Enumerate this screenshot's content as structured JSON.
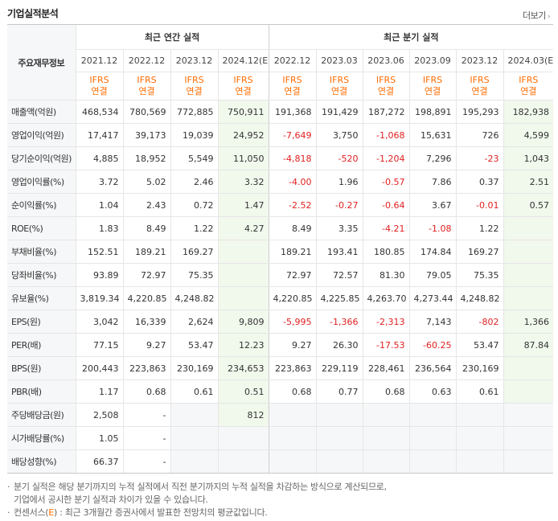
{
  "title": "기업실적분석",
  "more_label": "더보기",
  "header": {
    "label": "주요재무정보",
    "annual": "최근 연간 실적",
    "quarterly": "최근 분기 실적",
    "periods": [
      "2021.12",
      "2022.12",
      "2023.12",
      "2024.12(E)",
      "2022.12",
      "2023.03",
      "2023.06",
      "2023.09",
      "2023.12",
      "2024.03(E)"
    ],
    "basis_top": "IFRS",
    "basis_bottom": "연결"
  },
  "rows": [
    {
      "label": "매출액(억원)",
      "values": [
        "468,534",
        "780,569",
        "772,885",
        "750,911",
        "191,368",
        "191,429",
        "187,272",
        "198,891",
        "195,293",
        "182,938"
      ]
    },
    {
      "label": "영업이익(억원)",
      "values": [
        "17,417",
        "39,173",
        "19,039",
        "24,952",
        "-7,649",
        "3,750",
        "-1,068",
        "15,631",
        "726",
        "4,599"
      ]
    },
    {
      "label": "당기순이익(억원)",
      "values": [
        "4,885",
        "18,952",
        "5,549",
        "11,050",
        "-4,818",
        "-520",
        "-1,204",
        "7,296",
        "-23",
        "1,043"
      ]
    },
    {
      "label": "영업이익률(%)",
      "values": [
        "3.72",
        "5.02",
        "2.46",
        "3.32",
        "-4.00",
        "1.96",
        "-0.57",
        "7.86",
        "0.37",
        "2.51"
      ]
    },
    {
      "label": "순이익률(%)",
      "values": [
        "1.04",
        "2.43",
        "0.72",
        "1.47",
        "-2.52",
        "-0.27",
        "-0.64",
        "3.67",
        "-0.01",
        "0.57"
      ]
    },
    {
      "label": "ROE(%)",
      "values": [
        "1.83",
        "8.49",
        "1.22",
        "4.27",
        "8.49",
        "3.35",
        "-4.21",
        "-1.08",
        "1.22",
        ""
      ]
    },
    {
      "label": "부채비율(%)",
      "values": [
        "152.51",
        "189.21",
        "169.27",
        "",
        "189.21",
        "193.41",
        "180.85",
        "174.84",
        "169.27",
        ""
      ]
    },
    {
      "label": "당좌비율(%)",
      "values": [
        "93.89",
        "72.97",
        "75.35",
        "",
        "72.97",
        "72.57",
        "81.30",
        "79.05",
        "75.35",
        ""
      ]
    },
    {
      "label": "유보율(%)",
      "values": [
        "3,819.34",
        "4,220.85",
        "4,248.82",
        "",
        "4,220.85",
        "4,225.85",
        "4,263.70",
        "4,273.44",
        "4,248.82",
        ""
      ]
    },
    {
      "label": "EPS(원)",
      "values": [
        "3,042",
        "16,339",
        "2,624",
        "9,809",
        "-5,995",
        "-1,366",
        "-2,313",
        "7,143",
        "-802",
        "1,366"
      ]
    },
    {
      "label": "PER(배)",
      "values": [
        "77.15",
        "9.27",
        "53.47",
        "12.23",
        "9.27",
        "26.30",
        "-17.53",
        "-60.25",
        "53.47",
        "87.84"
      ]
    },
    {
      "label": "BPS(원)",
      "values": [
        "200,443",
        "223,863",
        "230,169",
        "234,653",
        "223,863",
        "229,119",
        "228,461",
        "236,564",
        "230,169",
        ""
      ]
    },
    {
      "label": "PBR(배)",
      "values": [
        "1.17",
        "0.68",
        "0.61",
        "0.51",
        "0.68",
        "0.77",
        "0.68",
        "0.63",
        "0.61",
        ""
      ]
    },
    {
      "label": "주당배당금(원)",
      "values": [
        "2,508",
        "-",
        "",
        "812",
        "",
        "",
        "",
        "",
        "",
        ""
      ]
    },
    {
      "label": "시가배당률(%)",
      "values": [
        "1.05",
        "-",
        "",
        "",
        "",
        "",
        "",
        "",
        "",
        ""
      ]
    },
    {
      "label": "배당성향(%)",
      "values": [
        "66.37",
        "-",
        "",
        "",
        "",
        "",
        "",
        "",
        "",
        ""
      ]
    }
  ],
  "notes": {
    "line1": "분기 실적은 해당 분기까지의 누적 실적에서 직전 분기까지의 누적 실적을 차감하는 방식으로 계산되므로,",
    "line2": "기업에서 공시한 분기 실적과 차이가 있을 수 있습니다.",
    "line3_a": "컨센서스(",
    "line3_e": "E",
    "line3_b": ") : 최근 3개월간 증권사에서 발표한 전망치의 평균값입니다."
  }
}
